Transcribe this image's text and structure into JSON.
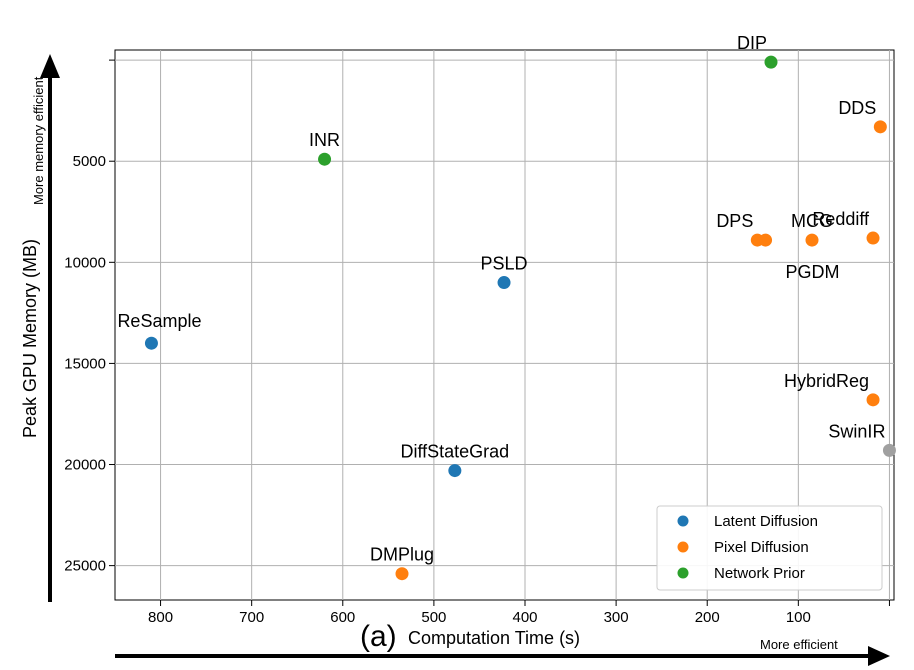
{
  "chart_data": {
    "type": "scatter",
    "panel_label": "(a)",
    "xlabel": "Computation Time (s)",
    "ylabel": "Peak GPU Memory (MB)",
    "x_reversed": true,
    "y_reversed": true,
    "xlim": [
      850,
      -5
    ],
    "ylim": [
      -500,
      26700
    ],
    "xticks": [
      800,
      700,
      600,
      500,
      400,
      300,
      200,
      100
    ],
    "xticks_extra_gridline": 0,
    "yticks": [
      5000,
      10000,
      15000,
      20000,
      25000
    ],
    "yticks_extra_gridline": 0,
    "grid": true,
    "annotations": {
      "x_arrow_text": "More efficient",
      "y_arrow_text": "More memory efficient"
    },
    "legend": {
      "position": "lower-right",
      "entries": [
        {
          "label": "Latent Diffusion",
          "color": "#1f77b4"
        },
        {
          "label": "Pixel Diffusion",
          "color": "#ff7f0e"
        },
        {
          "label": "Network Prior",
          "color": "#2ca02c"
        }
      ]
    },
    "points": [
      {
        "label": "DIP",
        "x": 130,
        "y": 100,
        "color": "#2ca02c",
        "label_pos": "above-left"
      },
      {
        "label": "DDS",
        "x": 10,
        "y": 3300,
        "color": "#ff7f0e",
        "label_pos": "above-left"
      },
      {
        "label": "INR",
        "x": 620,
        "y": 4900,
        "color": "#2ca02c",
        "label_pos": "above"
      },
      {
        "label": "DPS",
        "x": 145,
        "y": 8900,
        "color": "#ff7f0e",
        "label_pos": "above-left"
      },
      {
        "label": "PGDM",
        "x": 136,
        "y": 8900,
        "color": "#ff7f0e",
        "label_pos": "below-right"
      },
      {
        "label": "MCG",
        "x": 85,
        "y": 8900,
        "color": "#ff7f0e",
        "label_pos": "above"
      },
      {
        "label": "Reddiff",
        "x": 18,
        "y": 8800,
        "color": "#ff7f0e",
        "label_pos": "above-left"
      },
      {
        "label": "PSLD",
        "x": 423,
        "y": 11000,
        "color": "#1f77b4",
        "label_pos": "above"
      },
      {
        "label": "ReSample",
        "x": 810,
        "y": 14000,
        "color": "#1f77b4",
        "label_pos": "above-right"
      },
      {
        "label": "HybridReg",
        "x": 18,
        "y": 16800,
        "color": "#ff7f0e",
        "label_pos": "above-left"
      },
      {
        "label": "SwinIR",
        "x": 0,
        "y": 19300,
        "color": "#a0a0a0",
        "label_pos": "above-left"
      },
      {
        "label": "DiffStateGrad",
        "x": 477,
        "y": 20300,
        "color": "#1f77b4",
        "label_pos": "above"
      },
      {
        "label": "DMPlug",
        "x": 535,
        "y": 25400,
        "color": "#ff7f0e",
        "label_pos": "above"
      }
    ]
  }
}
